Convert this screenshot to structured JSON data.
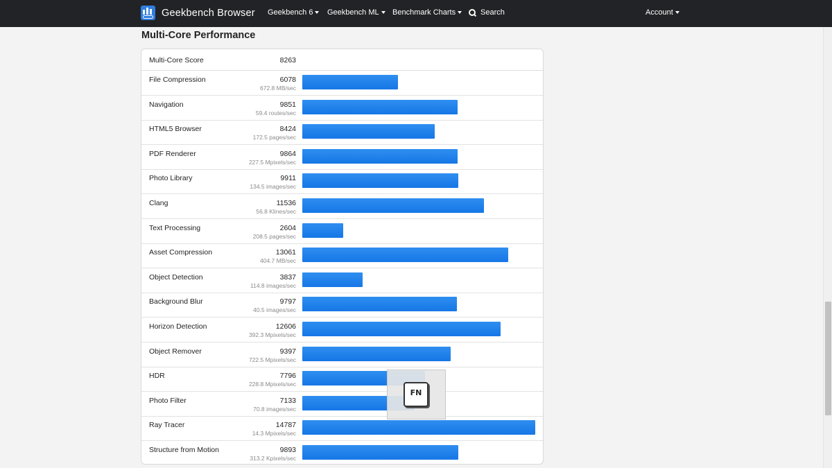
{
  "navbar": {
    "brand": "Geekbench Browser",
    "items": [
      {
        "label": "Geekbench 6"
      },
      {
        "label": "Geekbench ML"
      },
      {
        "label": "Benchmark Charts"
      }
    ],
    "search_label": "Search",
    "account_label": "Account"
  },
  "section": {
    "title": "Multi-Core Performance",
    "score_label": "Multi-Core Score",
    "score_value": "8263"
  },
  "results": [
    {
      "name": "File Compression",
      "score": 6078,
      "unit": "672.8 MB/sec"
    },
    {
      "name": "Navigation",
      "score": 9851,
      "unit": "59.4 routes/sec"
    },
    {
      "name": "HTML5 Browser",
      "score": 8424,
      "unit": "172.5 pages/sec"
    },
    {
      "name": "PDF Renderer",
      "score": 9864,
      "unit": "227.5 Mpixels/sec"
    },
    {
      "name": "Photo Library",
      "score": 9911,
      "unit": "134.5 images/sec"
    },
    {
      "name": "Clang",
      "score": 11536,
      "unit": "56.8 Klines/sec"
    },
    {
      "name": "Text Processing",
      "score": 2604,
      "unit": "208.5 pages/sec"
    },
    {
      "name": "Asset Compression",
      "score": 13061,
      "unit": "404.7 MB/sec"
    },
    {
      "name": "Object Detection",
      "score": 3837,
      "unit": "114.8 images/sec"
    },
    {
      "name": "Background Blur",
      "score": 9797,
      "unit": "40.5 images/sec"
    },
    {
      "name": "Horizon Detection",
      "score": 12606,
      "unit": "392.3 Mpixels/sec"
    },
    {
      "name": "Object Remover",
      "score": 9397,
      "unit": "722.5 Mpixels/sec"
    },
    {
      "name": "HDR",
      "score": 7796,
      "unit": "228.8 Mpixels/sec"
    },
    {
      "name": "Photo Filter",
      "score": 7133,
      "unit": "70.8 images/sec"
    },
    {
      "name": "Ray Tracer",
      "score": 14787,
      "unit": "14.3 Mpixels/sec"
    },
    {
      "name": "Structure from Motion",
      "score": 9893,
      "unit": "313.2 Kpixels/sec"
    }
  ],
  "overlay": {
    "key_label": "FN"
  },
  "colors": {
    "navbar": "#222326",
    "bar": "#1a7ee8",
    "background": "#f3f3f3"
  },
  "icons": {
    "brand": "geekbench-logo-icon",
    "search": "search-icon",
    "caret": "caret-down-icon",
    "overlay": "fn-key-icon"
  }
}
